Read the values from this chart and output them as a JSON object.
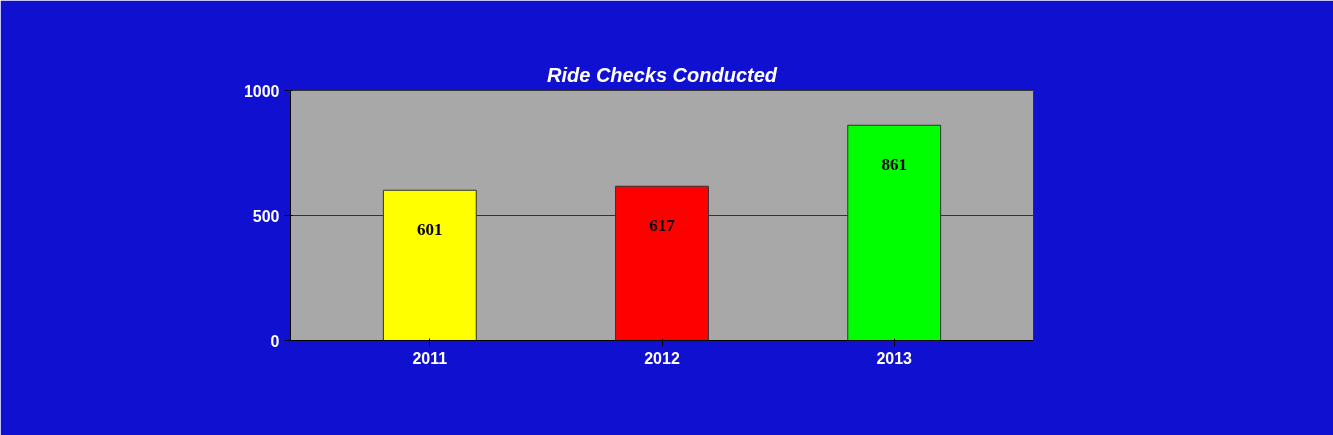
{
  "chart_data": {
    "type": "bar",
    "title": "Ride Checks Conducted",
    "categories": [
      "2011",
      "2012",
      "2013"
    ],
    "values": [
      601,
      617,
      861
    ],
    "colors": [
      "#ffff00",
      "#ff0000",
      "#00ff00"
    ],
    "ylim": [
      0,
      1000
    ],
    "yticks": [
      0,
      500,
      1000
    ],
    "grid": "y",
    "data_labels": true
  }
}
